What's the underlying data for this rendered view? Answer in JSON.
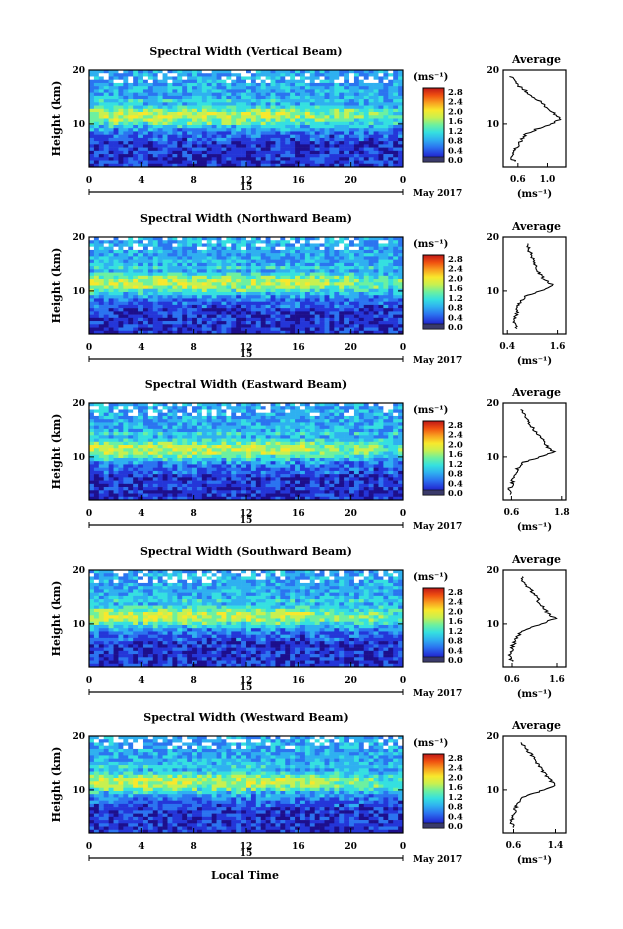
{
  "figure": {
    "xlabel": "Local Time",
    "x_ticks": [
      "0",
      "4",
      "8",
      "12",
      "16",
      "20",
      "0"
    ],
    "day_label": "15",
    "month_label": "May 2017",
    "ylabel": "Height (km)",
    "y_ticks": [
      "20",
      "10"
    ],
    "unit_label": "(ms⁻¹)",
    "avg_title": "Average",
    "avg_xlabel": "(ms⁻¹)",
    "colorbar_ticks": [
      "2.8",
      "2.4",
      "2.0",
      "1.6",
      "1.2",
      "0.8",
      "0.4",
      "0.0"
    ],
    "colormap": [
      "#1d0f8c",
      "#2436d8",
      "#2b74f0",
      "#2fb0f0",
      "#35e0e0",
      "#6cf0a0",
      "#c8f050",
      "#f8e82c",
      "#f8a020",
      "#f05010",
      "#c01818"
    ]
  },
  "chart_data": [
    {
      "type": "heatmap",
      "title": "Spectral Width (Vertical Beam)",
      "x_range_hours": [
        0,
        24
      ],
      "y_range_km": [
        2,
        20
      ],
      "z_range_ms": [
        0.0,
        3.0
      ],
      "colorbar_ticks": [
        2.8,
        2.4,
        2.0,
        1.6,
        1.2,
        0.8,
        0.4,
        0.0
      ],
      "average_profile": {
        "x_ticks": [
          "0.6",
          "1.0"
        ],
        "xlim": [
          0.4,
          1.25
        ],
        "height_km": [
          3,
          4,
          5,
          6,
          7,
          8,
          9,
          10,
          11,
          12,
          13,
          14,
          15,
          16,
          17,
          18,
          19
        ],
        "width_ms": [
          0.55,
          0.5,
          0.55,
          0.6,
          0.65,
          0.7,
          0.85,
          1.05,
          1.18,
          1.08,
          0.98,
          0.92,
          0.8,
          0.72,
          0.62,
          0.55,
          0.5
        ]
      }
    },
    {
      "type": "heatmap",
      "title": "Spectral Width (Northward Beam)",
      "x_range_hours": [
        0,
        24
      ],
      "y_range_km": [
        2,
        20
      ],
      "z_range_ms": [
        0.0,
        3.0
      ],
      "colorbar_ticks": [
        2.8,
        2.4,
        2.0,
        1.6,
        1.2,
        0.8,
        0.4,
        0.0
      ],
      "average_profile": {
        "x_ticks": [
          "0.4",
          "1.6"
        ],
        "xlim": [
          0.3,
          1.8
        ],
        "height_km": [
          3,
          4,
          5,
          6,
          7,
          8,
          9,
          10,
          11,
          12,
          13,
          14,
          15,
          16,
          17,
          18,
          19
        ],
        "width_ms": [
          0.65,
          0.55,
          0.6,
          0.62,
          0.65,
          0.7,
          0.85,
          1.2,
          1.5,
          1.3,
          1.2,
          1.1,
          1.05,
          1.0,
          0.95,
          0.9,
          0.85
        ]
      }
    },
    {
      "type": "heatmap",
      "title": "Spectral Width (Eastward Beam)",
      "x_range_hours": [
        0,
        24
      ],
      "y_range_km": [
        2,
        20
      ],
      "z_range_ms": [
        0.0,
        3.0
      ],
      "colorbar_ticks": [
        2.8,
        2.4,
        2.0,
        1.6,
        1.2,
        0.8,
        0.4,
        0.0
      ],
      "average_profile": {
        "x_ticks": [
          "0.6",
          "1.8"
        ],
        "xlim": [
          0.4,
          1.9
        ],
        "height_km": [
          3,
          4,
          5,
          6,
          7,
          8,
          9,
          10,
          11,
          12,
          13,
          14,
          15,
          16,
          17,
          18,
          19
        ],
        "width_ms": [
          0.6,
          0.55,
          0.62,
          0.65,
          0.7,
          0.75,
          0.9,
          1.3,
          1.6,
          1.45,
          1.35,
          1.25,
          1.15,
          1.05,
          1.0,
          0.9,
          0.85
        ]
      }
    },
    {
      "type": "heatmap",
      "title": "Spectral Width (Southward Beam)",
      "x_range_hours": [
        0,
        24
      ],
      "y_range_km": [
        2,
        20
      ],
      "z_range_ms": [
        0.0,
        3.0
      ],
      "colorbar_ticks": [
        2.8,
        2.4,
        2.0,
        1.6,
        1.2,
        0.8,
        0.4,
        0.0
      ],
      "average_profile": {
        "x_ticks": [
          "0.6",
          "1.6"
        ],
        "xlim": [
          0.4,
          1.8
        ],
        "height_km": [
          3,
          4,
          5,
          6,
          7,
          8,
          9,
          10,
          11,
          12,
          13,
          14,
          15,
          16,
          17,
          18,
          19
        ],
        "width_ms": [
          0.6,
          0.55,
          0.6,
          0.62,
          0.68,
          0.75,
          0.9,
          1.25,
          1.55,
          1.4,
          1.3,
          1.2,
          1.15,
          1.05,
          0.95,
          0.85,
          0.8
        ]
      }
    },
    {
      "type": "heatmap",
      "title": "Spectral Width (Westward Beam)",
      "x_range_hours": [
        0,
        24
      ],
      "y_range_km": [
        2,
        20
      ],
      "z_range_ms": [
        0.0,
        3.0
      ],
      "colorbar_ticks": [
        2.8,
        2.4,
        2.0,
        1.6,
        1.2,
        0.8,
        0.4,
        0.0
      ],
      "average_profile": {
        "x_ticks": [
          "0.6",
          "1.4"
        ],
        "xlim": [
          0.4,
          1.6
        ],
        "height_km": [
          3,
          4,
          5,
          6,
          7,
          8,
          9,
          10,
          11,
          12,
          13,
          14,
          15,
          16,
          17,
          18,
          19
        ],
        "width_ms": [
          0.6,
          0.55,
          0.58,
          0.62,
          0.66,
          0.72,
          0.85,
          1.2,
          1.4,
          1.28,
          1.2,
          1.12,
          1.05,
          0.98,
          0.9,
          0.82,
          0.75
        ]
      }
    }
  ]
}
